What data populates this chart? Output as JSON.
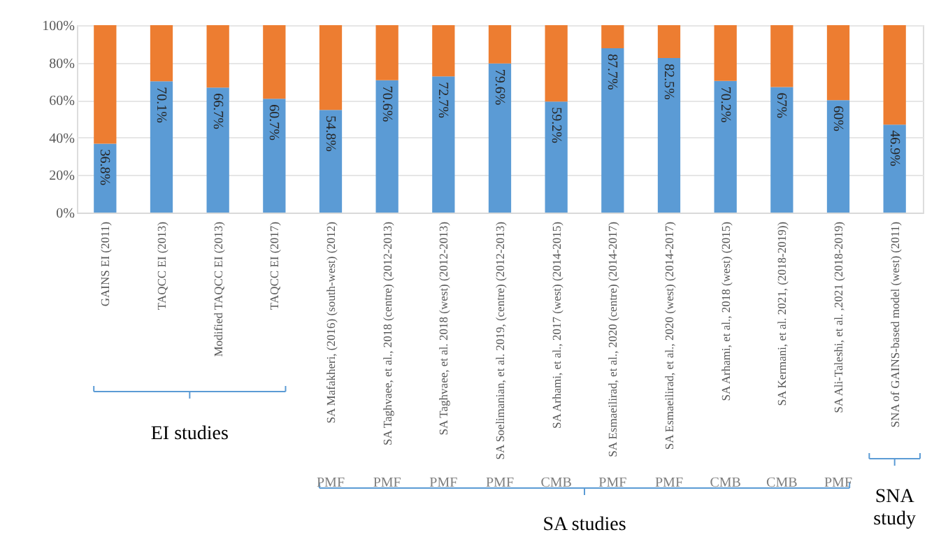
{
  "chart_data": {
    "type": "bar",
    "stacked": true,
    "categories": [
      "GAINS EI (2011)",
      "TAQCC EI (2013)",
      "Modified TAQCC EI (2013)",
      "TAQCC EI (2017)",
      "SA Mafakheri, (2016) (south-west) (2012)",
      "SA Taghvaee, et al., 2018 (centre) (2012-2013)",
      "SA Taghvaee, et al. 2018 (west) (2012-2013)",
      "SA Soelimanian, et al. 2019, (centre) (2012-2013)",
      "SA Arhami, et al., 2017 (west) (2014-2015)",
      "SA Esmaeilirad, et al., 2020 (centre) (2014-2017)",
      "SA Esmaeilirad, et al., 2020 (west) (2014-2017)",
      "SA Arhami, et al., 2018 (west) (2015)",
      "SA Kermani, et al. 2021, (2018-2019))",
      "SA Ali-Taleshi, et al. ,2021 (2018-2019)",
      "SNA of GAINS-based model (west) (2011)"
    ],
    "series": [
      {
        "color": "#5b9bd5",
        "values": [
          36.8,
          70.1,
          66.7,
          60.7,
          54.8,
          70.6,
          72.7,
          79.6,
          59.2,
          87.7,
          82.5,
          70.2,
          67,
          60,
          46.9
        ],
        "value_labels": [
          "36.8%",
          "70.1%",
          "66.7%",
          "60.7%",
          "54.8%",
          "70.6%",
          "72.7%",
          "79.6%",
          "59.2%",
          "87.7%",
          "82.5%",
          "70.2%",
          "67%",
          "60%",
          "46.9%"
        ]
      },
      {
        "color": "#ed7d31",
        "values": [
          63.2,
          29.9,
          33.3,
          39.3,
          45.2,
          29.4,
          27.3,
          20.4,
          40.8,
          12.3,
          17.5,
          29.8,
          33,
          40,
          53.1
        ]
      }
    ],
    "ylim": [
      0,
      100
    ],
    "yticks": [
      {
        "value": 0,
        "label": "0%"
      },
      {
        "value": 20,
        "label": "20%"
      },
      {
        "value": 40,
        "label": "40%"
      },
      {
        "value": 60,
        "label": "60%"
      },
      {
        "value": 80,
        "label": "80%"
      },
      {
        "value": 100,
        "label": "100%"
      }
    ],
    "grid": "y",
    "annotations": [
      "EI studies",
      "SA studies",
      "SNA study",
      "PMF",
      "PMF",
      "PMF",
      "PMF",
      "CMB",
      "PMF",
      "PMF",
      "CMB",
      "CMB",
      "PMF"
    ]
  }
}
